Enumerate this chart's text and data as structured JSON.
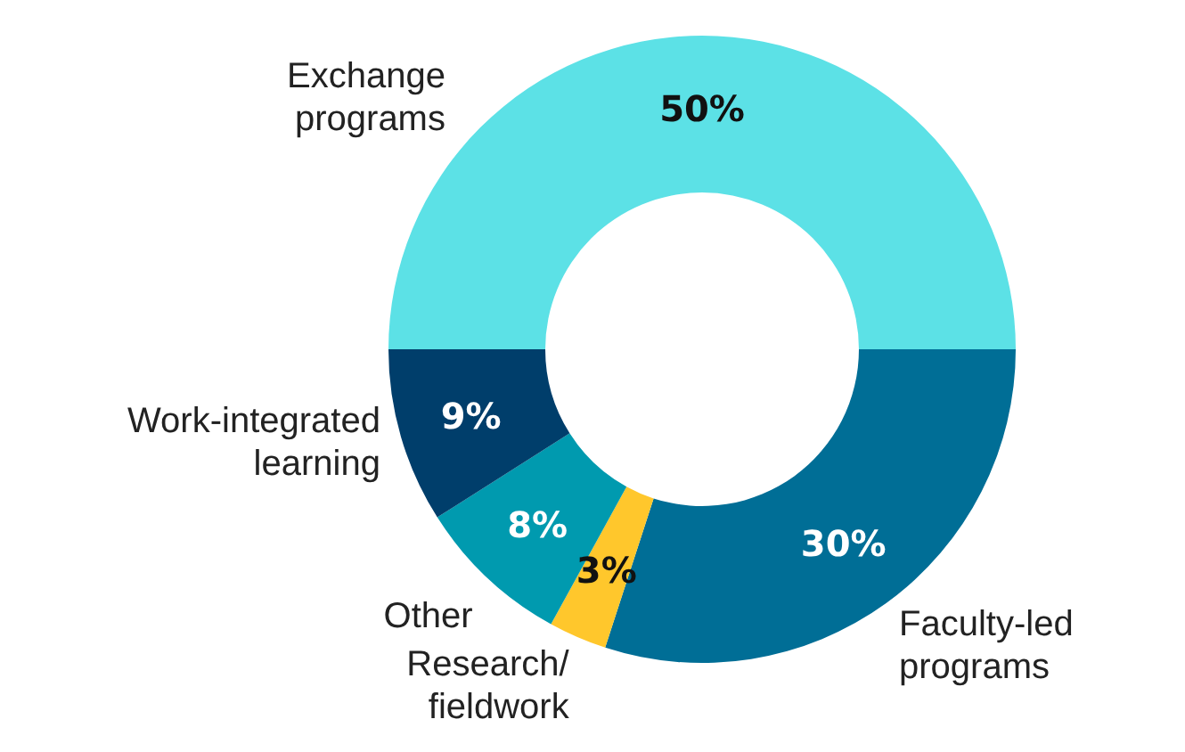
{
  "chart_data": {
    "type": "donut",
    "categories": [
      "Exchange programs",
      "Faculty-led programs",
      "Research/ fieldwork",
      "Other",
      "Work-integrated learning"
    ],
    "values": [
      50,
      30,
      3,
      8,
      9
    ],
    "value_labels": [
      "50%",
      "30%",
      "3%",
      "8%",
      "9%"
    ],
    "colors": [
      "#5ce1e6",
      "#006e96",
      "#ffc72c",
      "#009aaf",
      "#003e6b"
    ],
    "legend": false
  }
}
